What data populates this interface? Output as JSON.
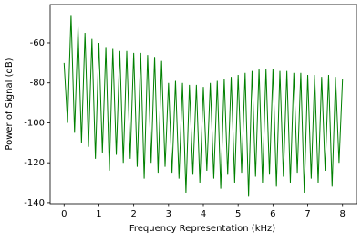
{
  "chart_data": {
    "type": "line",
    "xlabel": "Frequency Representation (kHz)",
    "ylabel": "Power of Signal (dB)",
    "x": [
      0.0,
      0.1,
      0.2,
      0.3,
      0.4,
      0.5,
      0.6,
      0.7,
      0.8,
      0.9,
      1.0,
      1.1,
      1.2,
      1.3,
      1.4,
      1.5,
      1.6,
      1.7,
      1.8,
      1.9,
      2.0,
      2.1,
      2.2,
      2.3,
      2.4,
      2.5,
      2.6,
      2.7,
      2.8,
      2.9,
      3.0,
      3.1,
      3.2,
      3.3,
      3.4,
      3.5,
      3.6,
      3.7,
      3.8,
      3.9,
      4.0,
      4.1,
      4.2,
      4.3,
      4.4,
      4.5,
      4.6,
      4.7,
      4.8,
      4.9,
      5.0,
      5.1,
      5.2,
      5.3,
      5.4,
      5.5,
      5.6,
      5.7,
      5.8,
      5.9,
      6.0,
      6.1,
      6.2,
      6.3,
      6.4,
      6.5,
      6.6,
      6.7,
      6.8,
      6.9,
      7.0,
      7.1,
      7.2,
      7.3,
      7.4,
      7.5,
      7.6,
      7.7,
      7.8,
      7.9,
      8.0
    ],
    "series": [
      {
        "color": "#008000",
        "values": [
          -70,
          -100,
          -46,
          -105,
          -52,
          -110,
          -55,
          -112,
          -58,
          -118,
          -60,
          -115,
          -62,
          -124,
          -63,
          -116,
          -64,
          -120,
          -64,
          -118,
          -65,
          -122,
          -65,
          -128,
          -66,
          -120,
          -67,
          -125,
          -69,
          -122,
          -80,
          -125,
          -79,
          -128,
          -80,
          -135,
          -81,
          -126,
          -81,
          -130,
          -82,
          -124,
          -80,
          -128,
          -79,
          -133,
          -78,
          -126,
          -77,
          -130,
          -76,
          -125,
          -75,
          -137,
          -74,
          -127,
          -73,
          -130,
          -73,
          -126,
          -73,
          -132,
          -74,
          -127,
          -74,
          -130,
          -75,
          -125,
          -75,
          -135,
          -76,
          -128,
          -76,
          -130,
          -77,
          -124,
          -76,
          -132,
          -77,
          -120,
          -78
        ]
      }
    ],
    "xlim": [
      -0.4,
      8.4
    ],
    "ylim": [
      -140.5,
      -40.8
    ],
    "xticks": [
      0,
      1,
      2,
      3,
      4,
      5,
      6,
      7,
      8
    ],
    "yticks": [
      -140,
      -120,
      -100,
      -80,
      -60
    ]
  }
}
